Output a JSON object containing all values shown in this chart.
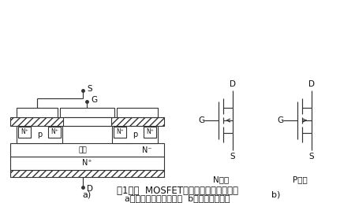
{
  "title1": "图1功率  MOSFET的结构和电气图形符号",
  "title2": "a）内部结构断面示意图  b）电气图形符号",
  "label_a": "a)",
  "label_b": "b)",
  "label_N": "N沟道",
  "label_P": "P沟道",
  "line_color": "#333333",
  "font_size_title": 9,
  "font_size_label": 8,
  "font_size_small": 6.5
}
